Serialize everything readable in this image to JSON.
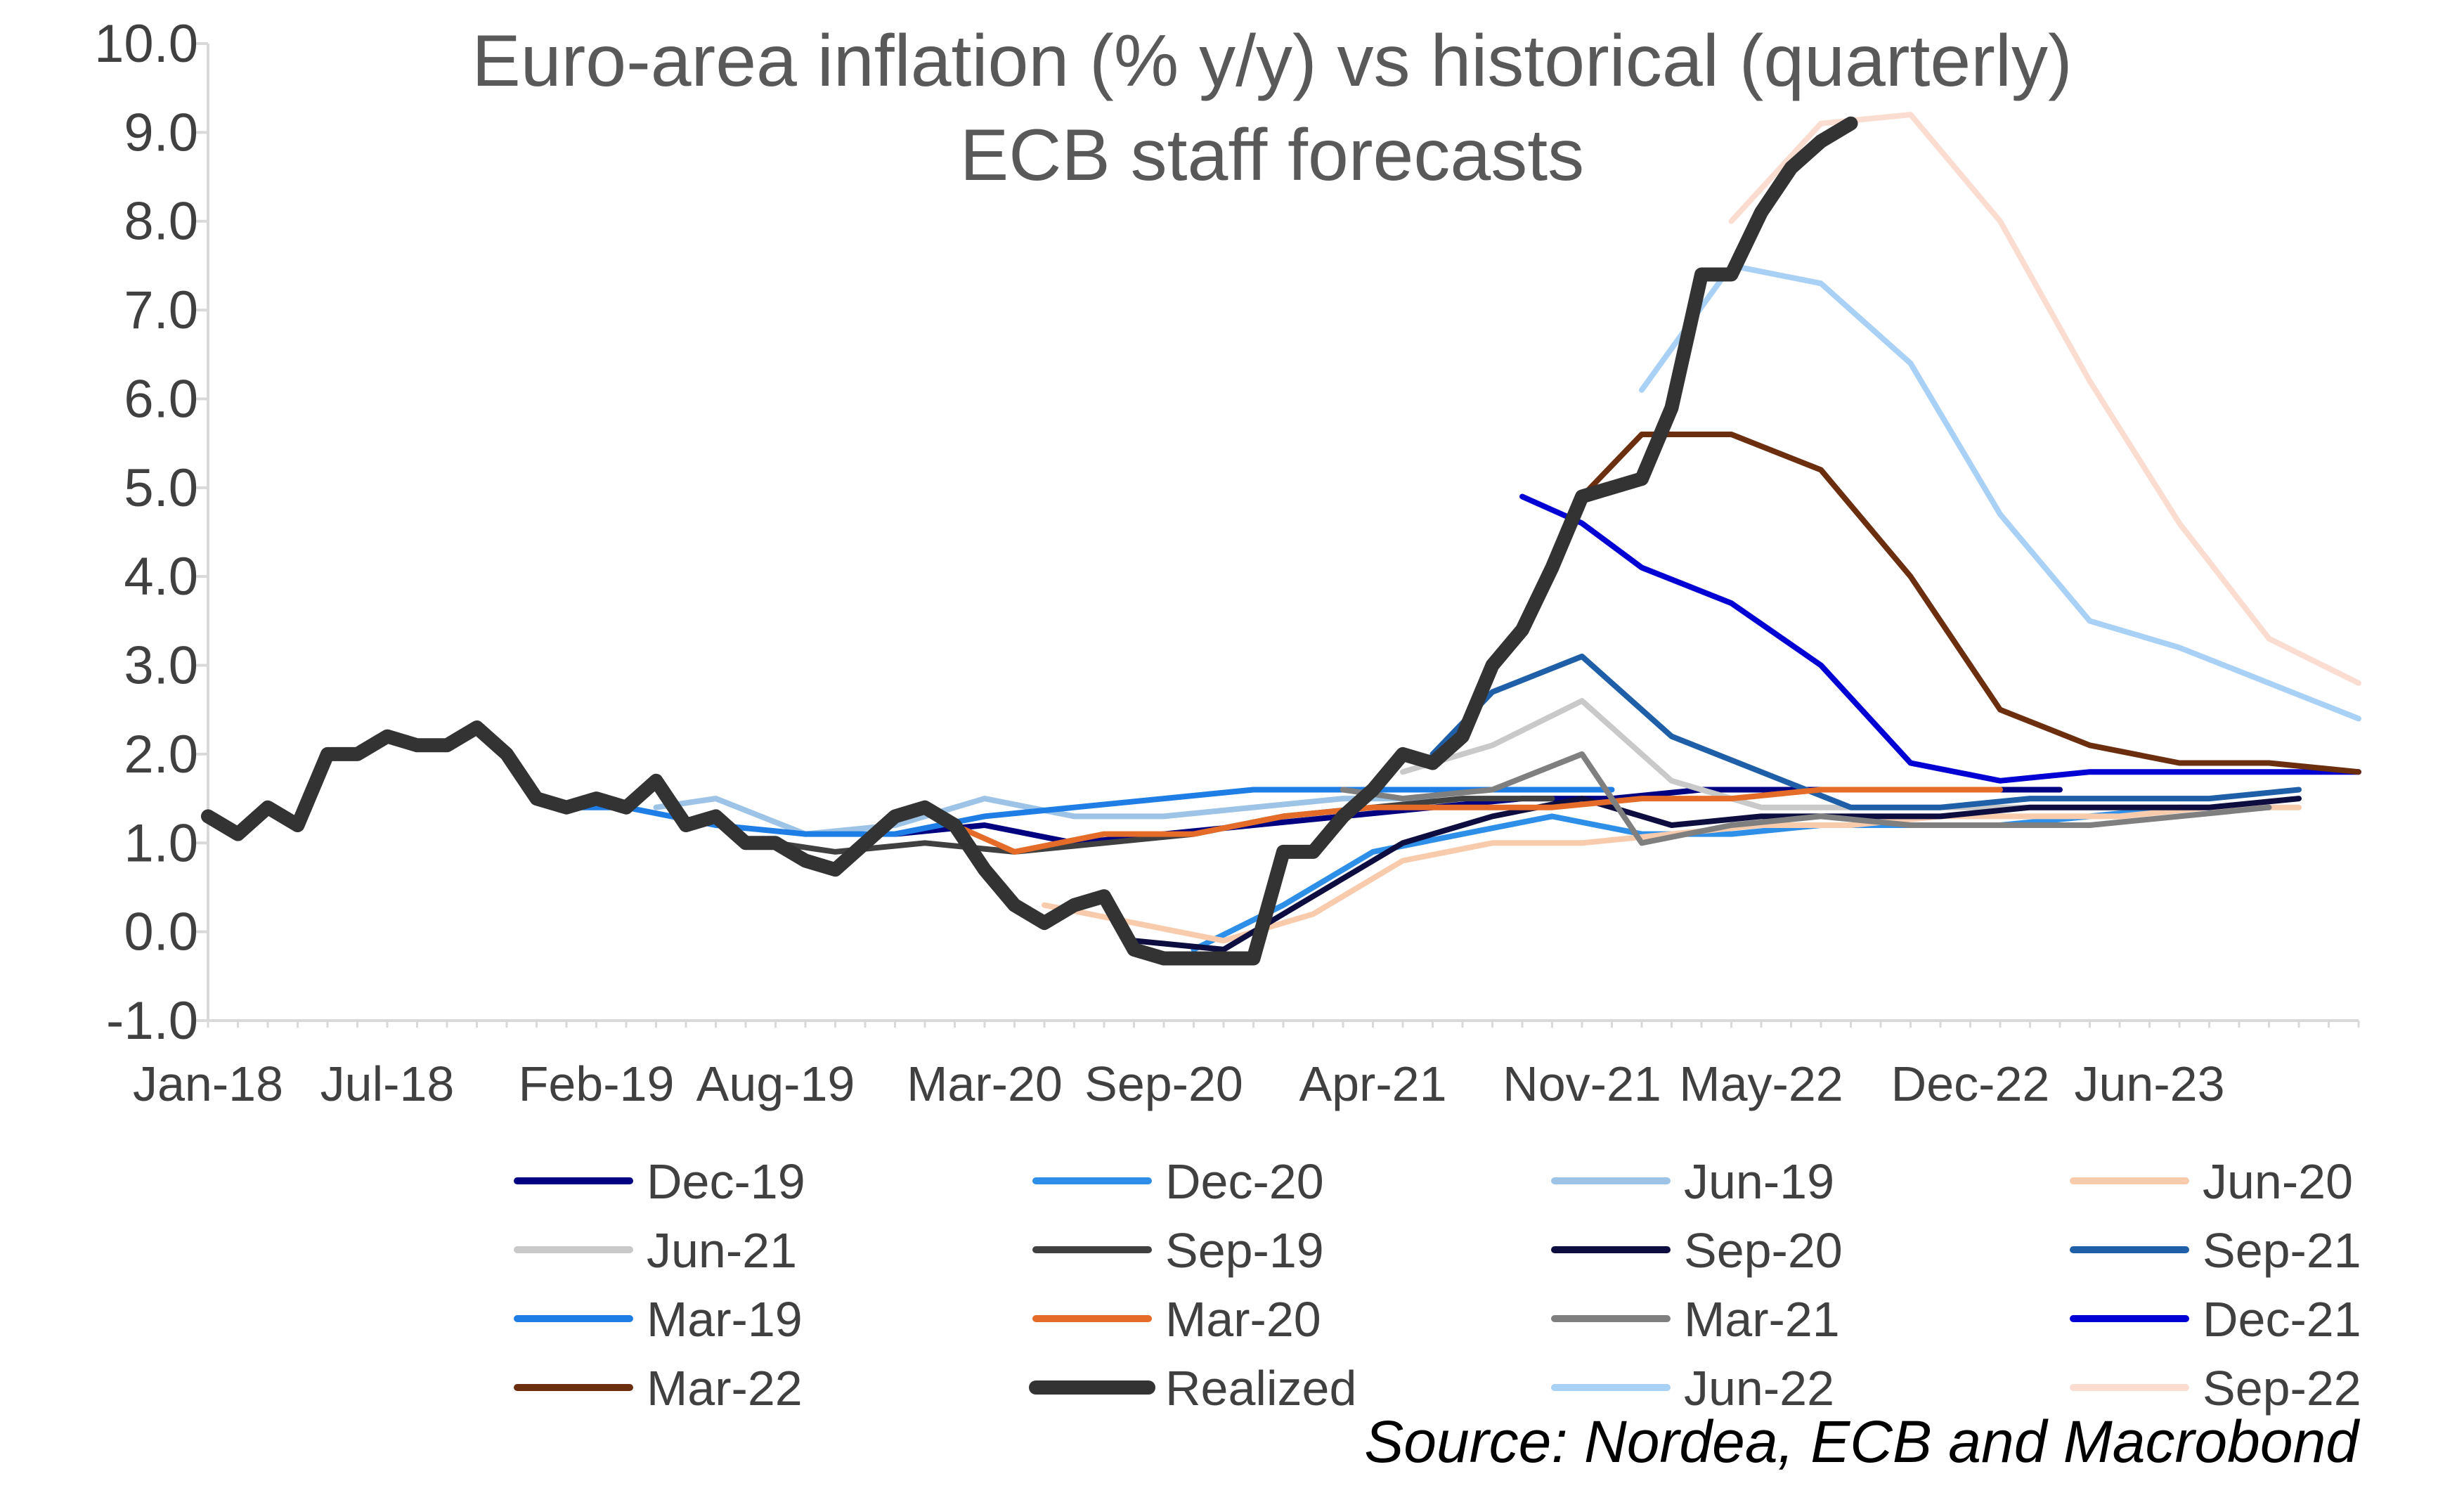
{
  "chart_data": {
    "type": "line",
    "title": [
      "Euro-area inflation (% y/y) vs historical (quarterly)",
      "ECB staff forecasts"
    ],
    "xlabel": "",
    "ylabel": "",
    "ylim": [
      -1.0,
      10.0
    ],
    "yticks": [
      "-1.0",
      "0.0",
      "1.0",
      "2.0",
      "3.0",
      "4.0",
      "5.0",
      "6.0",
      "7.0",
      "8.0",
      "9.0",
      "10.0"
    ],
    "x_start": "Jan-18",
    "x_end": "Dec-23",
    "xticks": [
      {
        "label": "Jan-18",
        "month": 0
      },
      {
        "label": "Jul-18",
        "month": 6
      },
      {
        "label": "Feb-19",
        "month": 13
      },
      {
        "label": "Aug-19",
        "month": 19
      },
      {
        "label": "Mar-20",
        "month": 26
      },
      {
        "label": "Sep-20",
        "month": 32
      },
      {
        "label": "Apr-21",
        "month": 39
      },
      {
        "label": "Nov-21",
        "month": 46
      },
      {
        "label": "May-22",
        "month": 52
      },
      {
        "label": "Dec-22",
        "month": 59
      },
      {
        "label": "Jun-23",
        "month": 65
      }
    ],
    "source": "Source: Nordea, ECB and Macrobond",
    "series": [
      {
        "name": "Dec-19",
        "color": "#000080",
        "width": 8,
        "points": [
          [
            23,
            1.1
          ],
          [
            26,
            1.2
          ],
          [
            29,
            1.0
          ],
          [
            32,
            1.1
          ],
          [
            35,
            1.2
          ],
          [
            38,
            1.3
          ],
          [
            41,
            1.4
          ],
          [
            44,
            1.5
          ],
          [
            47,
            1.5
          ],
          [
            50,
            1.6
          ],
          [
            53,
            1.6
          ],
          [
            56,
            1.6
          ],
          [
            59,
            1.6
          ],
          [
            62,
            1.6
          ]
        ]
      },
      {
        "name": "Dec-20",
        "color": "#2E8FE8",
        "width": 8,
        "points": [
          [
            33,
            -0.2
          ],
          [
            36,
            0.3
          ],
          [
            39,
            0.9
          ],
          [
            42,
            1.1
          ],
          [
            45,
            1.3
          ],
          [
            48,
            1.1
          ],
          [
            51,
            1.1
          ],
          [
            54,
            1.2
          ],
          [
            57,
            1.2
          ],
          [
            60,
            1.2
          ],
          [
            63,
            1.3
          ],
          [
            66,
            1.4
          ],
          [
            69,
            1.4
          ]
        ]
      },
      {
        "name": "Jun-19",
        "color": "#9DC3E6",
        "width": 8,
        "points": [
          [
            15,
            1.4
          ],
          [
            17,
            1.5
          ],
          [
            20,
            1.1
          ],
          [
            23,
            1.2
          ],
          [
            26,
            1.5
          ],
          [
            29,
            1.3
          ],
          [
            32,
            1.3
          ],
          [
            35,
            1.4
          ],
          [
            38,
            1.5
          ],
          [
            41,
            1.5
          ]
        ]
      },
      {
        "name": "Jun-20",
        "color": "#F8CBAD",
        "width": 8,
        "points": [
          [
            28,
            0.3
          ],
          [
            31,
            0.1
          ],
          [
            34,
            -0.1
          ],
          [
            37,
            0.2
          ],
          [
            40,
            0.8
          ],
          [
            43,
            1.0
          ],
          [
            46,
            1.0
          ],
          [
            49,
            1.1
          ],
          [
            52,
            1.2
          ],
          [
            55,
            1.2
          ],
          [
            58,
            1.3
          ],
          [
            61,
            1.3
          ],
          [
            64,
            1.3
          ],
          [
            67,
            1.4
          ],
          [
            70,
            1.4
          ]
        ]
      },
      {
        "name": "Jun-21",
        "color": "#C9C9C9",
        "width": 8,
        "points": [
          [
            40,
            1.8
          ],
          [
            43,
            2.1
          ],
          [
            46,
            2.6
          ],
          [
            49,
            1.7
          ],
          [
            52,
            1.4
          ],
          [
            55,
            1.4
          ],
          [
            58,
            1.4
          ],
          [
            61,
            1.4
          ],
          [
            64,
            1.4
          ],
          [
            67,
            1.4
          ],
          [
            70,
            1.5
          ]
        ]
      },
      {
        "name": "Sep-19",
        "color": "#404040",
        "width": 8,
        "points": [
          [
            19,
            1.0
          ],
          [
            21,
            0.9
          ],
          [
            24,
            1.0
          ],
          [
            27,
            0.9
          ],
          [
            30,
            1.0
          ],
          [
            33,
            1.1
          ],
          [
            36,
            1.3
          ],
          [
            39,
            1.4
          ],
          [
            42,
            1.5
          ],
          [
            45,
            1.5
          ]
        ]
      },
      {
        "name": "Sep-20",
        "color": "#0D0D40",
        "width": 8,
        "points": [
          [
            31,
            -0.1
          ],
          [
            34,
            -0.2
          ],
          [
            37,
            0.4
          ],
          [
            40,
            1.0
          ],
          [
            43,
            1.3
          ],
          [
            46,
            1.5
          ],
          [
            49,
            1.2
          ],
          [
            52,
            1.3
          ],
          [
            55,
            1.3
          ],
          [
            58,
            1.3
          ],
          [
            61,
            1.4
          ],
          [
            64,
            1.4
          ],
          [
            67,
            1.4
          ],
          [
            70,
            1.5
          ]
        ]
      },
      {
        "name": "Sep-21",
        "color": "#1F5FA8",
        "width": 8,
        "points": [
          [
            41,
            2.0
          ],
          [
            43,
            2.7
          ],
          [
            46,
            3.1
          ],
          [
            49,
            2.2
          ],
          [
            52,
            1.8
          ],
          [
            55,
            1.4
          ],
          [
            58,
            1.4
          ],
          [
            61,
            1.5
          ],
          [
            64,
            1.5
          ],
          [
            67,
            1.5
          ],
          [
            70,
            1.6
          ]
        ]
      },
      {
        "name": "Mar-19",
        "color": "#1E7EE6",
        "width": 8,
        "points": [
          [
            12,
            1.4
          ],
          [
            14,
            1.4
          ],
          [
            17,
            1.2
          ],
          [
            20,
            1.1
          ],
          [
            23,
            1.1
          ],
          [
            26,
            1.3
          ],
          [
            29,
            1.4
          ],
          [
            32,
            1.5
          ],
          [
            35,
            1.6
          ],
          [
            38,
            1.6
          ],
          [
            41,
            1.6
          ],
          [
            44,
            1.6
          ],
          [
            47,
            1.6
          ]
        ]
      },
      {
        "name": "Mar-20",
        "color": "#E46C28",
        "width": 8,
        "points": [
          [
            25,
            1.2
          ],
          [
            27,
            0.9
          ],
          [
            30,
            1.1
          ],
          [
            33,
            1.1
          ],
          [
            36,
            1.3
          ],
          [
            39,
            1.4
          ],
          [
            42,
            1.4
          ],
          [
            45,
            1.4
          ],
          [
            48,
            1.5
          ],
          [
            51,
            1.5
          ],
          [
            54,
            1.6
          ],
          [
            57,
            1.6
          ],
          [
            60,
            1.6
          ]
        ]
      },
      {
        "name": "Mar-21",
        "color": "#7F7F7F",
        "width": 8,
        "points": [
          [
            38,
            1.6
          ],
          [
            40,
            1.5
          ],
          [
            43,
            1.6
          ],
          [
            46,
            2.0
          ],
          [
            48,
            1.0
          ],
          [
            51,
            1.2
          ],
          [
            54,
            1.3
          ],
          [
            57,
            1.2
          ],
          [
            60,
            1.2
          ],
          [
            63,
            1.2
          ],
          [
            66,
            1.3
          ],
          [
            69,
            1.4
          ]
        ]
      },
      {
        "name": "Dec-21",
        "color": "#0000D4",
        "width": 8,
        "points": [
          [
            44,
            4.9
          ],
          [
            46,
            4.6
          ],
          [
            48,
            4.1
          ],
          [
            51,
            3.7
          ],
          [
            54,
            3.0
          ],
          [
            57,
            1.9
          ],
          [
            60,
            1.7
          ],
          [
            63,
            1.8
          ],
          [
            66,
            1.8
          ],
          [
            69,
            1.8
          ],
          [
            72,
            1.8
          ]
        ]
      },
      {
        "name": "Mar-22",
        "color": "#6B2E0F",
        "width": 8,
        "points": [
          [
            46,
            4.9
          ],
          [
            48,
            5.6
          ],
          [
            51,
            5.6
          ],
          [
            54,
            5.2
          ],
          [
            57,
            4.0
          ],
          [
            60,
            2.5
          ],
          [
            63,
            2.1
          ],
          [
            66,
            1.9
          ],
          [
            69,
            1.9
          ],
          [
            72,
            1.8
          ]
        ]
      },
      {
        "name": "Jun-22",
        "color": "#A9D0F5",
        "width": 8,
        "points": [
          [
            48,
            6.1
          ],
          [
            51,
            7.5
          ],
          [
            54,
            7.3
          ],
          [
            57,
            6.4
          ],
          [
            60,
            4.7
          ],
          [
            63,
            3.5
          ],
          [
            66,
            3.2
          ],
          [
            69,
            2.8
          ],
          [
            72,
            2.4
          ]
        ]
      },
      {
        "name": "Sep-22",
        "color": "#FADDD0",
        "width": 8,
        "points": [
          [
            51,
            8.0
          ],
          [
            54,
            9.1
          ],
          [
            57,
            9.2
          ],
          [
            60,
            8.0
          ],
          [
            63,
            6.2
          ],
          [
            66,
            4.6
          ],
          [
            69,
            3.3
          ],
          [
            72,
            2.8
          ]
        ]
      },
      {
        "name": "Realized",
        "color": "#333333",
        "width": 20,
        "points": [
          [
            0,
            1.3
          ],
          [
            1,
            1.1
          ],
          [
            2,
            1.4
          ],
          [
            3,
            1.2
          ],
          [
            4,
            2.0
          ],
          [
            5,
            2.0
          ],
          [
            6,
            2.2
          ],
          [
            7,
            2.1
          ],
          [
            8,
            2.1
          ],
          [
            9,
            2.3
          ],
          [
            10,
            2.0
          ],
          [
            11,
            1.5
          ],
          [
            12,
            1.4
          ],
          [
            13,
            1.5
          ],
          [
            14,
            1.4
          ],
          [
            15,
            1.7
          ],
          [
            16,
            1.2
          ],
          [
            17,
            1.3
          ],
          [
            18,
            1.0
          ],
          [
            19,
            1.0
          ],
          [
            20,
            0.8
          ],
          [
            21,
            0.7
          ],
          [
            22,
            1.0
          ],
          [
            23,
            1.3
          ],
          [
            24,
            1.4
          ],
          [
            25,
            1.2
          ],
          [
            26,
            0.7
          ],
          [
            27,
            0.3
          ],
          [
            28,
            0.1
          ],
          [
            29,
            0.3
          ],
          [
            30,
            0.4
          ],
          [
            31,
            -0.2
          ],
          [
            32,
            -0.3
          ],
          [
            33,
            -0.3
          ],
          [
            34,
            -0.3
          ],
          [
            35,
            -0.3
          ],
          [
            36,
            0.9
          ],
          [
            37,
            0.9
          ],
          [
            38,
            1.3
          ],
          [
            39,
            1.6
          ],
          [
            40,
            2.0
          ],
          [
            41,
            1.9
          ],
          [
            42,
            2.2
          ],
          [
            43,
            3.0
          ],
          [
            44,
            3.4
          ],
          [
            45,
            4.1
          ],
          [
            46,
            4.9
          ],
          [
            47,
            5.0
          ],
          [
            48,
            5.1
          ],
          [
            49,
            5.9
          ],
          [
            50,
            7.4
          ],
          [
            51,
            7.4
          ],
          [
            52,
            8.1
          ],
          [
            53,
            8.6
          ],
          [
            54,
            8.9
          ],
          [
            55,
            9.1
          ]
        ]
      }
    ],
    "legend": [
      [
        "Dec-19",
        "Dec-20",
        "Jun-19",
        "Jun-20"
      ],
      [
        "Jun-21",
        "Sep-19",
        "Sep-20",
        "Sep-21"
      ],
      [
        "Mar-19",
        "Mar-20",
        "Mar-21",
        "Dec-21"
      ],
      [
        "Mar-22",
        "Realized",
        "Jun-22",
        "Sep-22"
      ]
    ]
  }
}
